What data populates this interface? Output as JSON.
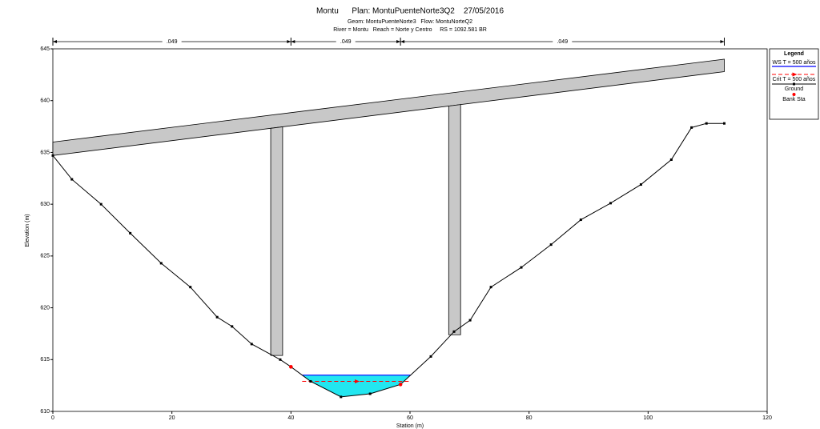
{
  "chart_data": {
    "type": "cross-section",
    "title": "Montu      Plan: MontuPuenteNorte3Q2    27/05/2016",
    "subtitle": "Geom: MontuPuenteNorte3   Flow: MontuNorteQ2",
    "subtitle2": "River = Montu   Reach = Norte y Centro     RS = 1092.581 BR",
    "x_label": "Station (m)",
    "y_label": "Elevation (m)",
    "xlim": [
      0,
      120
    ],
    "xticks": [
      0,
      20,
      40,
      60,
      80,
      100,
      120
    ],
    "ylim": [
      610,
      645
    ],
    "yticks": [
      610,
      615,
      620,
      625,
      630,
      635,
      640,
      645
    ],
    "legend_title": "Legend",
    "ws": {
      "name": "WS T = 500 años",
      "color": "#0000ff",
      "fill": "#22e6f0",
      "value": 613.5
    },
    "crit": {
      "name": "Crit T = 500 años",
      "color": "#ff0000",
      "value": 612.9
    },
    "ground": {
      "name": "Ground",
      "color": "#000000",
      "x": [
        0,
        3.2,
        8.1,
        13.0,
        18.2,
        23.1,
        27.6,
        30.1,
        33.4,
        38.2,
        40.0,
        43.3,
        48.4,
        53.3,
        58.4,
        63.5,
        67.4,
        70.1,
        73.6,
        78.7,
        83.7,
        88.7,
        93.7,
        98.8,
        103.9,
        107.3,
        109.8,
        112.8
      ],
      "values": [
        634.7,
        632.4,
        630.0,
        627.2,
        624.3,
        622.0,
        619.1,
        618.2,
        616.5,
        615.0,
        614.3,
        612.9,
        611.4,
        611.7,
        612.6,
        615.3,
        617.7,
        618.8,
        622.0,
        623.9,
        626.1,
        628.5,
        630.1,
        631.9,
        634.3,
        637.4,
        637.8,
        637.8
      ]
    },
    "bank_sta": {
      "name": "Bank Sta",
      "color": "#ff0000",
      "x": [
        40.0,
        58.4
      ],
      "values": [
        614.3,
        612.6
      ]
    },
    "deck": {
      "x": [
        0,
        112.8
      ],
      "top": [
        636.0,
        644.0
      ],
      "bottom": [
        634.7,
        642.8
      ]
    },
    "piers": [
      {
        "x": [
          36.6,
          38.6
        ],
        "bottom": 615.4
      },
      {
        "x": [
          66.5,
          68.5
        ],
        "bottom": 617.4
      }
    ],
    "mannings": {
      "stations": [
        0,
        40,
        58.4,
        112.8
      ],
      "labels": [
        ".049",
        ".049",
        ".049"
      ]
    }
  }
}
